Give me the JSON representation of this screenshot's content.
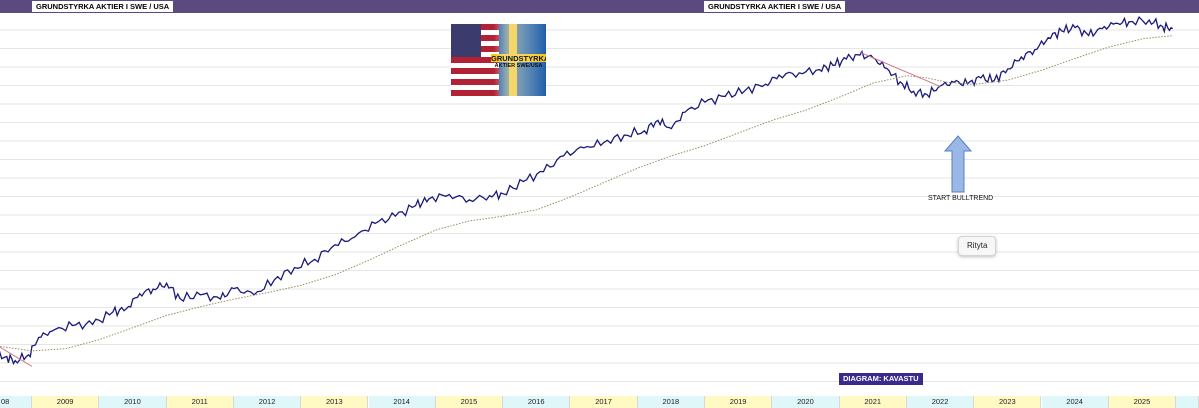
{
  "header": {
    "label_left": "GRUNDSTYRKA AKTIER I SWE / USA",
    "label_right": "GRUNDSTYRKA AKTIER I SWE / USA",
    "bar_color": "#5a4a7e"
  },
  "logo": {
    "line1": "GRUNDSTYRKA",
    "line2": "AKTIER SWE/USA"
  },
  "annotation": {
    "text": "START BULLTREND",
    "arrow_color": "#9ab8e6"
  },
  "tooltip": {
    "text": "Rityta"
  },
  "credit": {
    "text": "DIAGRAM: KAVASTU",
    "color": "#3a2a8c"
  },
  "x_axis": {
    "first_partial_label": "08",
    "years": [
      "2009",
      "2010",
      "2011",
      "2012",
      "2013",
      "2014",
      "2015",
      "2016",
      "2017",
      "2018",
      "2019",
      "2020",
      "2021",
      "2022",
      "2023",
      "2024",
      "2025"
    ],
    "band_colors": [
      "#fff9c4",
      "#e0f7fa"
    ]
  },
  "chart_data": {
    "type": "line",
    "title": "GRUNDSTYRKA AKTIER I SWE / USA",
    "xlabel": "",
    "ylabel": "",
    "ylim": [
      0,
      100
    ],
    "xlim": [
      2008.0,
      2025.95
    ],
    "grid": true,
    "log_scale": false,
    "series": [
      {
        "color": "#1a1a7a",
        "style": "solid",
        "points": [
          [
            2008.0,
            13.5
          ],
          [
            2008.3,
            10.8
          ],
          [
            2008.6,
            6.9
          ],
          [
            2008.75,
            5.9
          ],
          [
            2008.95,
            7.5
          ],
          [
            2009.1,
            12.3
          ],
          [
            2009.3,
            14.1
          ],
          [
            2009.6,
            15.6
          ],
          [
            2009.9,
            15.9
          ],
          [
            2010.2,
            19.3
          ],
          [
            2010.4,
            20.2
          ],
          [
            2010.6,
            24.4
          ],
          [
            2010.8,
            25.7
          ],
          [
            2011.0,
            27.3
          ],
          [
            2011.2,
            23.0
          ],
          [
            2011.5,
            24.1
          ],
          [
            2011.8,
            22.9
          ],
          [
            2012.0,
            25.8
          ],
          [
            2012.3,
            24.1
          ],
          [
            2012.6,
            28.2
          ],
          [
            2012.9,
            31.6
          ],
          [
            2013.2,
            33.9
          ],
          [
            2013.5,
            37.9
          ],
          [
            2013.8,
            40.1
          ],
          [
            2014.1,
            43.8
          ],
          [
            2014.4,
            45.8
          ],
          [
            2014.7,
            48.7
          ],
          [
            2014.9,
            50.6
          ],
          [
            2015.2,
            51.8
          ],
          [
            2015.5,
            50.3
          ],
          [
            2015.8,
            51.5
          ],
          [
            2016.0,
            52.0
          ],
          [
            2016.3,
            55.4
          ],
          [
            2016.6,
            58.1
          ],
          [
            2016.9,
            62.5
          ],
          [
            2017.2,
            64.7
          ],
          [
            2017.5,
            66.2
          ],
          [
            2017.8,
            68.2
          ],
          [
            2018.1,
            69.4
          ],
          [
            2018.3,
            72.3
          ],
          [
            2018.5,
            70.0
          ],
          [
            2018.7,
            74.5
          ],
          [
            2019.0,
            77.3
          ],
          [
            2019.3,
            78.9
          ],
          [
            2019.6,
            80.6
          ],
          [
            2019.9,
            82.3
          ],
          [
            2020.1,
            84.8
          ],
          [
            2020.4,
            85.4
          ],
          [
            2020.7,
            86.3
          ],
          [
            2020.9,
            87.5
          ],
          [
            2021.1,
            89.2
          ],
          [
            2021.3,
            90.3
          ],
          [
            2021.5,
            89.5
          ],
          [
            2021.7,
            86.6
          ],
          [
            2021.9,
            82.9
          ],
          [
            2022.1,
            80.3
          ],
          [
            2022.3,
            79.4
          ],
          [
            2022.5,
            81.8
          ],
          [
            2022.7,
            82.8
          ],
          [
            2022.9,
            82.3
          ],
          [
            2023.1,
            84.0
          ],
          [
            2023.3,
            83.4
          ],
          [
            2023.5,
            86.5
          ],
          [
            2023.7,
            89.8
          ],
          [
            2023.9,
            91.8
          ],
          [
            2024.1,
            95.1
          ],
          [
            2024.3,
            97.0
          ],
          [
            2024.5,
            97.9
          ],
          [
            2024.7,
            95.7
          ],
          [
            2024.9,
            97.6
          ],
          [
            2025.1,
            99.1
          ],
          [
            2025.3,
            99.5
          ],
          [
            2025.6,
            100.0
          ],
          [
            2025.8,
            98.2
          ],
          [
            2025.95,
            97.6
          ]
        ]
      },
      {
        "color": "#9a8a5a",
        "style": "dotted",
        "points": [
          [
            2008.0,
            11.6
          ],
          [
            2008.5,
            9.9
          ],
          [
            2009.0,
            8.6
          ],
          [
            2009.5,
            9.2
          ],
          [
            2010.0,
            11.7
          ],
          [
            2010.5,
            15.0
          ],
          [
            2011.0,
            18.4
          ],
          [
            2011.5,
            20.8
          ],
          [
            2012.0,
            22.9
          ],
          [
            2012.5,
            24.7
          ],
          [
            2013.0,
            26.7
          ],
          [
            2013.5,
            29.6
          ],
          [
            2014.0,
            33.6
          ],
          [
            2014.5,
            37.9
          ],
          [
            2015.0,
            42.0
          ],
          [
            2015.5,
            44.5
          ],
          [
            2016.0,
            45.8
          ],
          [
            2016.5,
            47.6
          ],
          [
            2017.0,
            51.1
          ],
          [
            2017.5,
            55.1
          ],
          [
            2018.0,
            59.1
          ],
          [
            2018.5,
            62.5
          ],
          [
            2019.0,
            65.3
          ],
          [
            2019.5,
            68.8
          ],
          [
            2020.0,
            72.3
          ],
          [
            2020.5,
            75.1
          ],
          [
            2021.0,
            78.7
          ],
          [
            2021.5,
            82.6
          ],
          [
            2022.0,
            84.6
          ],
          [
            2022.3,
            84.0
          ],
          [
            2022.6,
            82.8
          ],
          [
            2023.0,
            82.2
          ],
          [
            2023.5,
            83.4
          ],
          [
            2024.0,
            86.1
          ],
          [
            2024.5,
            89.4
          ],
          [
            2025.0,
            92.5
          ],
          [
            2025.5,
            94.8
          ],
          [
            2025.95,
            95.7
          ]
        ]
      },
      {
        "color": "#d07a8a",
        "style": "solid",
        "points": [
          [
            2008.5,
            9.9
          ],
          [
            2009.0,
            4.3
          ]
        ]
      },
      {
        "color": "#d07a8a",
        "style": "solid",
        "points": [
          [
            2021.3,
            91.1
          ],
          [
            2022.5,
            81.6
          ]
        ]
      }
    ]
  }
}
